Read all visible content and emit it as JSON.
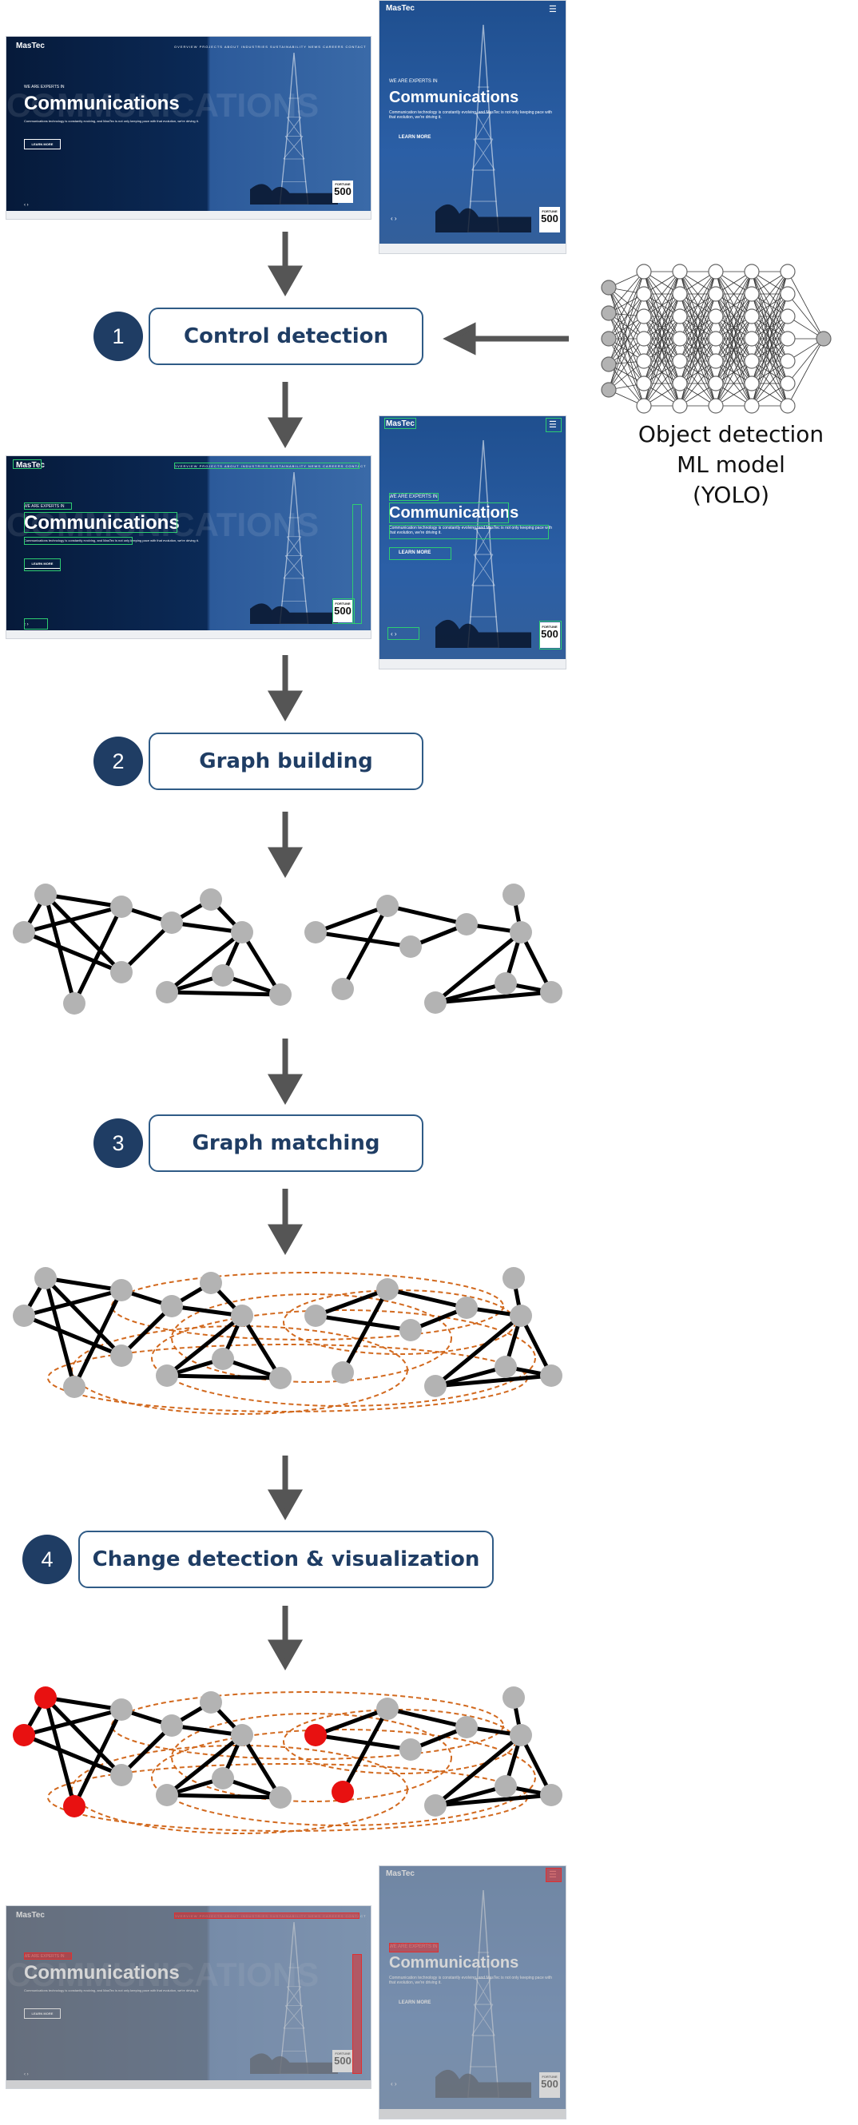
{
  "steps": [
    {
      "number": "1",
      "label": "Control detection"
    },
    {
      "number": "2",
      "label": "Graph building"
    },
    {
      "number": "3",
      "label": "Graph matching"
    },
    {
      "number": "4",
      "label": "Change detection & visualization"
    }
  ],
  "ml_model": {
    "line1": "Object detection",
    "line2": "ML model",
    "line3": "(YOLO)"
  },
  "screenshot": {
    "logo": "MasTec",
    "eyebrow": "WE ARE EXPERTS IN",
    "headline": "Communications",
    "ghost_text": "COMMUNICATIONS",
    "body_desktop": "Communications technology is constantly evolving, and MasTec is not only keeping pace with that evolution, we're driving it.",
    "body_mobile": "Communication technology is constantly evolving, and MasTec is not only keeping pace with that evolution, we're driving it.",
    "button": "LEARN MORE",
    "badge_top": "FORTUNE",
    "badge_num": "500",
    "nav": [
      "OVERVIEW",
      "PROJECTS",
      "ABOUT",
      "INDUSTRIES",
      "SUSTAINABILITY",
      "NEWS",
      "CAREERS",
      "CONTACT"
    ]
  },
  "colors": {
    "step_circle": "#1f3d64",
    "step_border": "#2f5b86",
    "arrow": "#555555",
    "node": "#b3b3b3",
    "node_changed": "#e81111",
    "edge": "#000000",
    "match_line": "#d2691e",
    "detection_box": "#2ecc71",
    "change_box": "#e03030"
  }
}
